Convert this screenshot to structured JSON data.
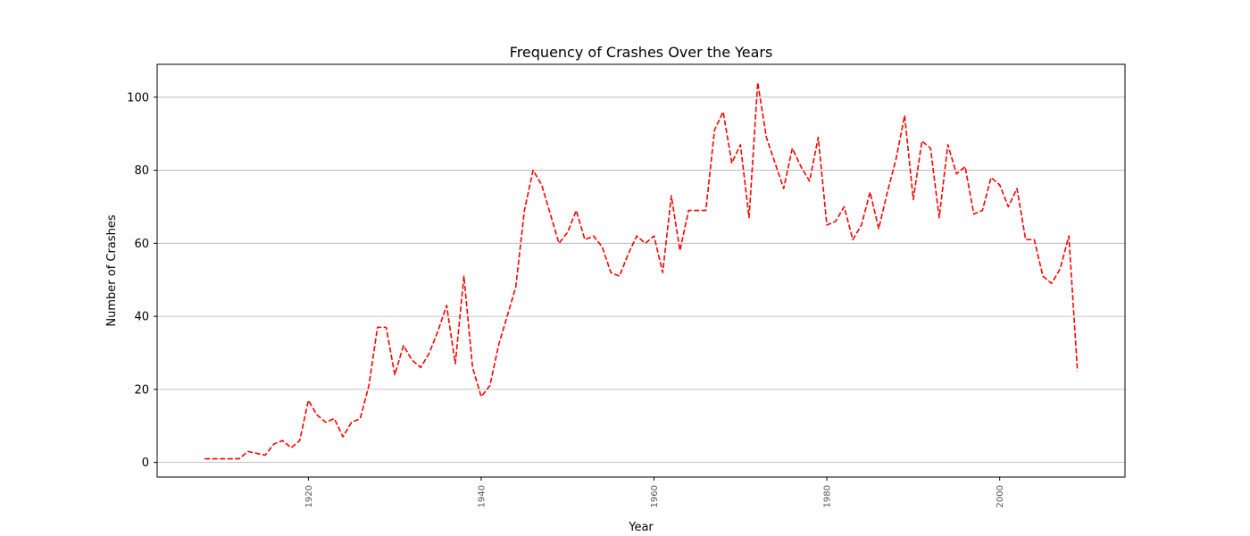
{
  "chart_data": {
    "type": "line",
    "title": "Frequency of Crashes Over the Years",
    "xlabel": "Year",
    "ylabel": "Number of Crashes",
    "xlim": [
      1902.5,
      2014.5
    ],
    "ylim": [
      -4,
      109
    ],
    "x_ticks": [
      1920,
      1940,
      1960,
      1980,
      2000
    ],
    "y_ticks": [
      0,
      20,
      40,
      60,
      80,
      100
    ],
    "grid": "horizontal",
    "line_color": "#ff0000",
    "line_style": "dashed",
    "series": [
      {
        "x": [
          1908,
          1909,
          1910,
          1911,
          1912,
          1913,
          1914,
          1915,
          1916,
          1917,
          1918,
          1919,
          1920,
          1921,
          1922,
          1923,
          1924,
          1925,
          1926,
          1927,
          1928,
          1929,
          1930,
          1931,
          1932,
          1933,
          1934,
          1935,
          1936,
          1937,
          1938,
          1939,
          1940,
          1941,
          1942,
          1943,
          1944,
          1945,
          1946,
          1947,
          1948,
          1949,
          1950,
          1951,
          1952,
          1953,
          1954,
          1955,
          1956,
          1957,
          1958,
          1959,
          1960,
          1961,
          1962,
          1963,
          1964,
          1965,
          1966,
          1967,
          1968,
          1969,
          1970,
          1971,
          1972,
          1973,
          1974,
          1975,
          1976,
          1977,
          1978,
          1979,
          1980,
          1981,
          1982,
          1983,
          1984,
          1985,
          1986,
          1987,
          1988,
          1989,
          1990,
          1991,
          1992,
          1993,
          1994,
          1995,
          1996,
          1997,
          1998,
          1999,
          2000,
          2001,
          2002,
          2003,
          2004,
          2005,
          2006,
          2007,
          2008,
          2009
        ],
        "values": [
          1,
          1,
          1,
          1,
          1,
          3,
          2.5,
          2,
          5,
          6,
          4,
          6,
          17,
          13,
          11,
          12,
          7,
          11,
          12,
          21,
          37,
          37,
          24,
          32,
          28,
          26,
          30,
          36,
          43,
          27,
          51,
          26,
          18,
          21,
          32,
          40,
          48,
          69,
          80,
          76,
          68,
          60,
          63,
          69,
          61,
          62,
          59,
          52,
          51,
          57,
          62,
          60,
          62,
          52,
          73,
          58,
          69,
          69,
          69,
          91,
          96,
          82,
          87,
          67,
          104,
          89,
          82,
          75,
          86,
          81,
          77,
          89,
          65,
          66,
          70,
          61,
          65,
          74,
          64,
          74,
          83,
          95,
          72,
          88,
          86,
          67,
          87,
          79,
          81,
          68,
          69,
          78,
          76,
          70,
          75,
          61,
          61,
          51,
          49,
          53,
          62,
          25
        ]
      }
    ]
  }
}
